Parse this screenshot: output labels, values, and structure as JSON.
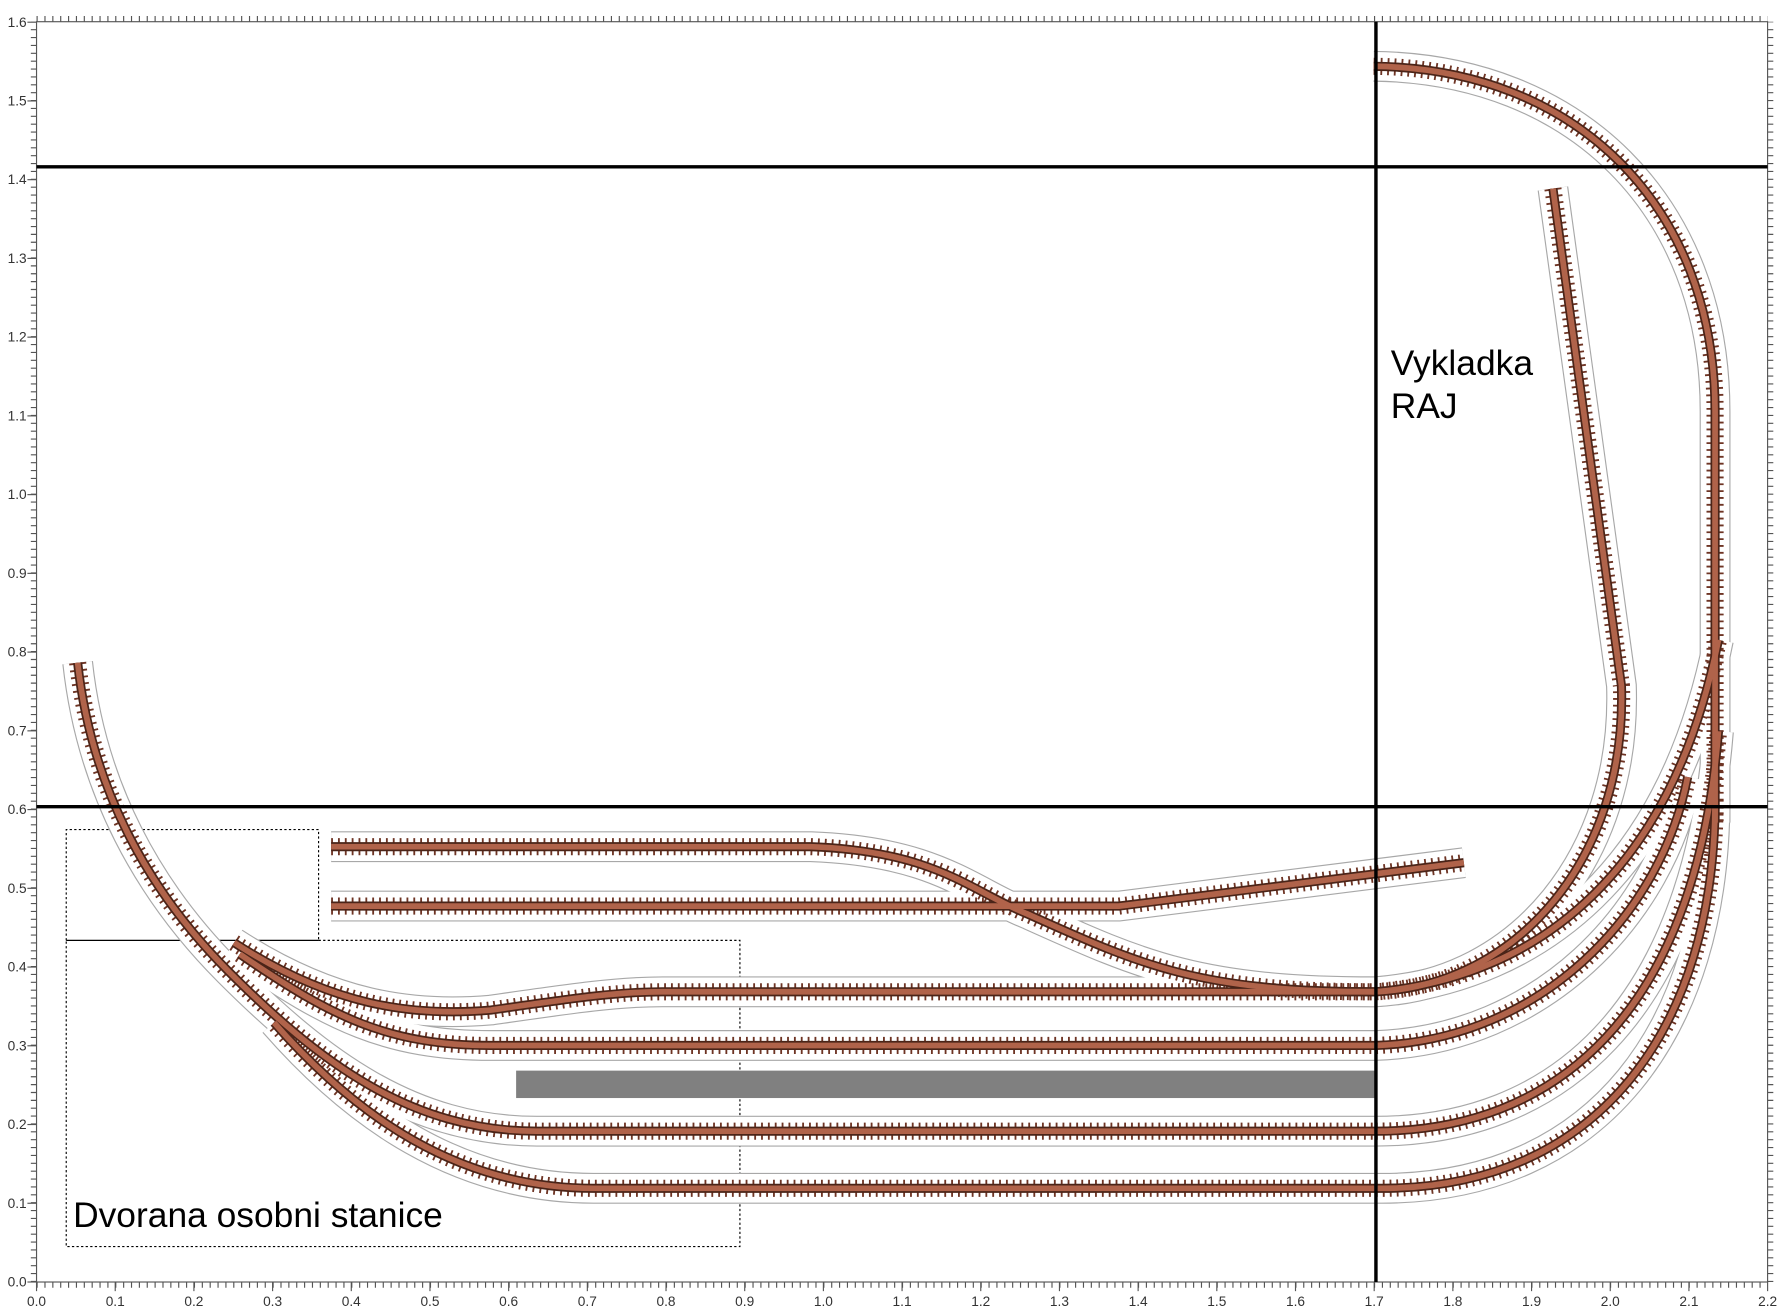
{
  "labels": {
    "unloading": [
      "Vykladka",
      "RAJ"
    ],
    "hall": "Dvorana osobni stanice"
  },
  "axes": {
    "x_ticks": [
      {
        "value": 0,
        "label": "0.0"
      },
      {
        "value": 0.1,
        "label": "0.1"
      },
      {
        "value": 0.2,
        "label": "0.2"
      },
      {
        "value": 0.3,
        "label": "0.3"
      },
      {
        "value": 0.4,
        "label": "0.4"
      },
      {
        "value": 0.5,
        "label": "0.5"
      },
      {
        "value": 0.6,
        "label": "0.6"
      },
      {
        "value": 0.7,
        "label": "0.7"
      },
      {
        "value": 0.8,
        "label": "0.8"
      },
      {
        "value": 0.9,
        "label": "0.9"
      },
      {
        "value": 1,
        "label": "1.0"
      },
      {
        "value": 1.1,
        "label": "1.1"
      },
      {
        "value": 1.2,
        "label": "1.2"
      },
      {
        "value": 1.3,
        "label": "1.3"
      },
      {
        "value": 1.4,
        "label": "1.4"
      },
      {
        "value": 1.5,
        "label": "1.5"
      },
      {
        "value": 1.6,
        "label": "1.6"
      },
      {
        "value": 1.7,
        "label": "1.7"
      },
      {
        "value": 1.8,
        "label": "1.8"
      },
      {
        "value": 1.9,
        "label": "1.9"
      },
      {
        "value": 2,
        "label": "2.0"
      },
      {
        "value": 2.1,
        "label": "2.1"
      },
      {
        "value": 2.2,
        "label": "2.2"
      }
    ],
    "y_ticks": [
      {
        "value": 0,
        "label": "0.0"
      },
      {
        "value": 0.1,
        "label": "0.1"
      },
      {
        "value": 0.2,
        "label": "0.2"
      },
      {
        "value": 0.3,
        "label": "0.3"
      },
      {
        "value": 0.4,
        "label": "0.4"
      },
      {
        "value": 0.5,
        "label": "0.5"
      },
      {
        "value": 0.6,
        "label": "0.6"
      },
      {
        "value": 0.7,
        "label": "0.7"
      },
      {
        "value": 0.8,
        "label": "0.8"
      },
      {
        "value": 0.9,
        "label": "0.9"
      },
      {
        "value": 1,
        "label": "1.0"
      },
      {
        "value": 1.1,
        "label": "1.1"
      },
      {
        "value": 1.2,
        "label": "1.2"
      },
      {
        "value": 1.3,
        "label": "1.3"
      },
      {
        "value": 1.4,
        "label": "1.4"
      },
      {
        "value": 1.5,
        "label": "1.5"
      },
      {
        "value": 1.6,
        "label": "1.6"
      }
    ]
  }
}
